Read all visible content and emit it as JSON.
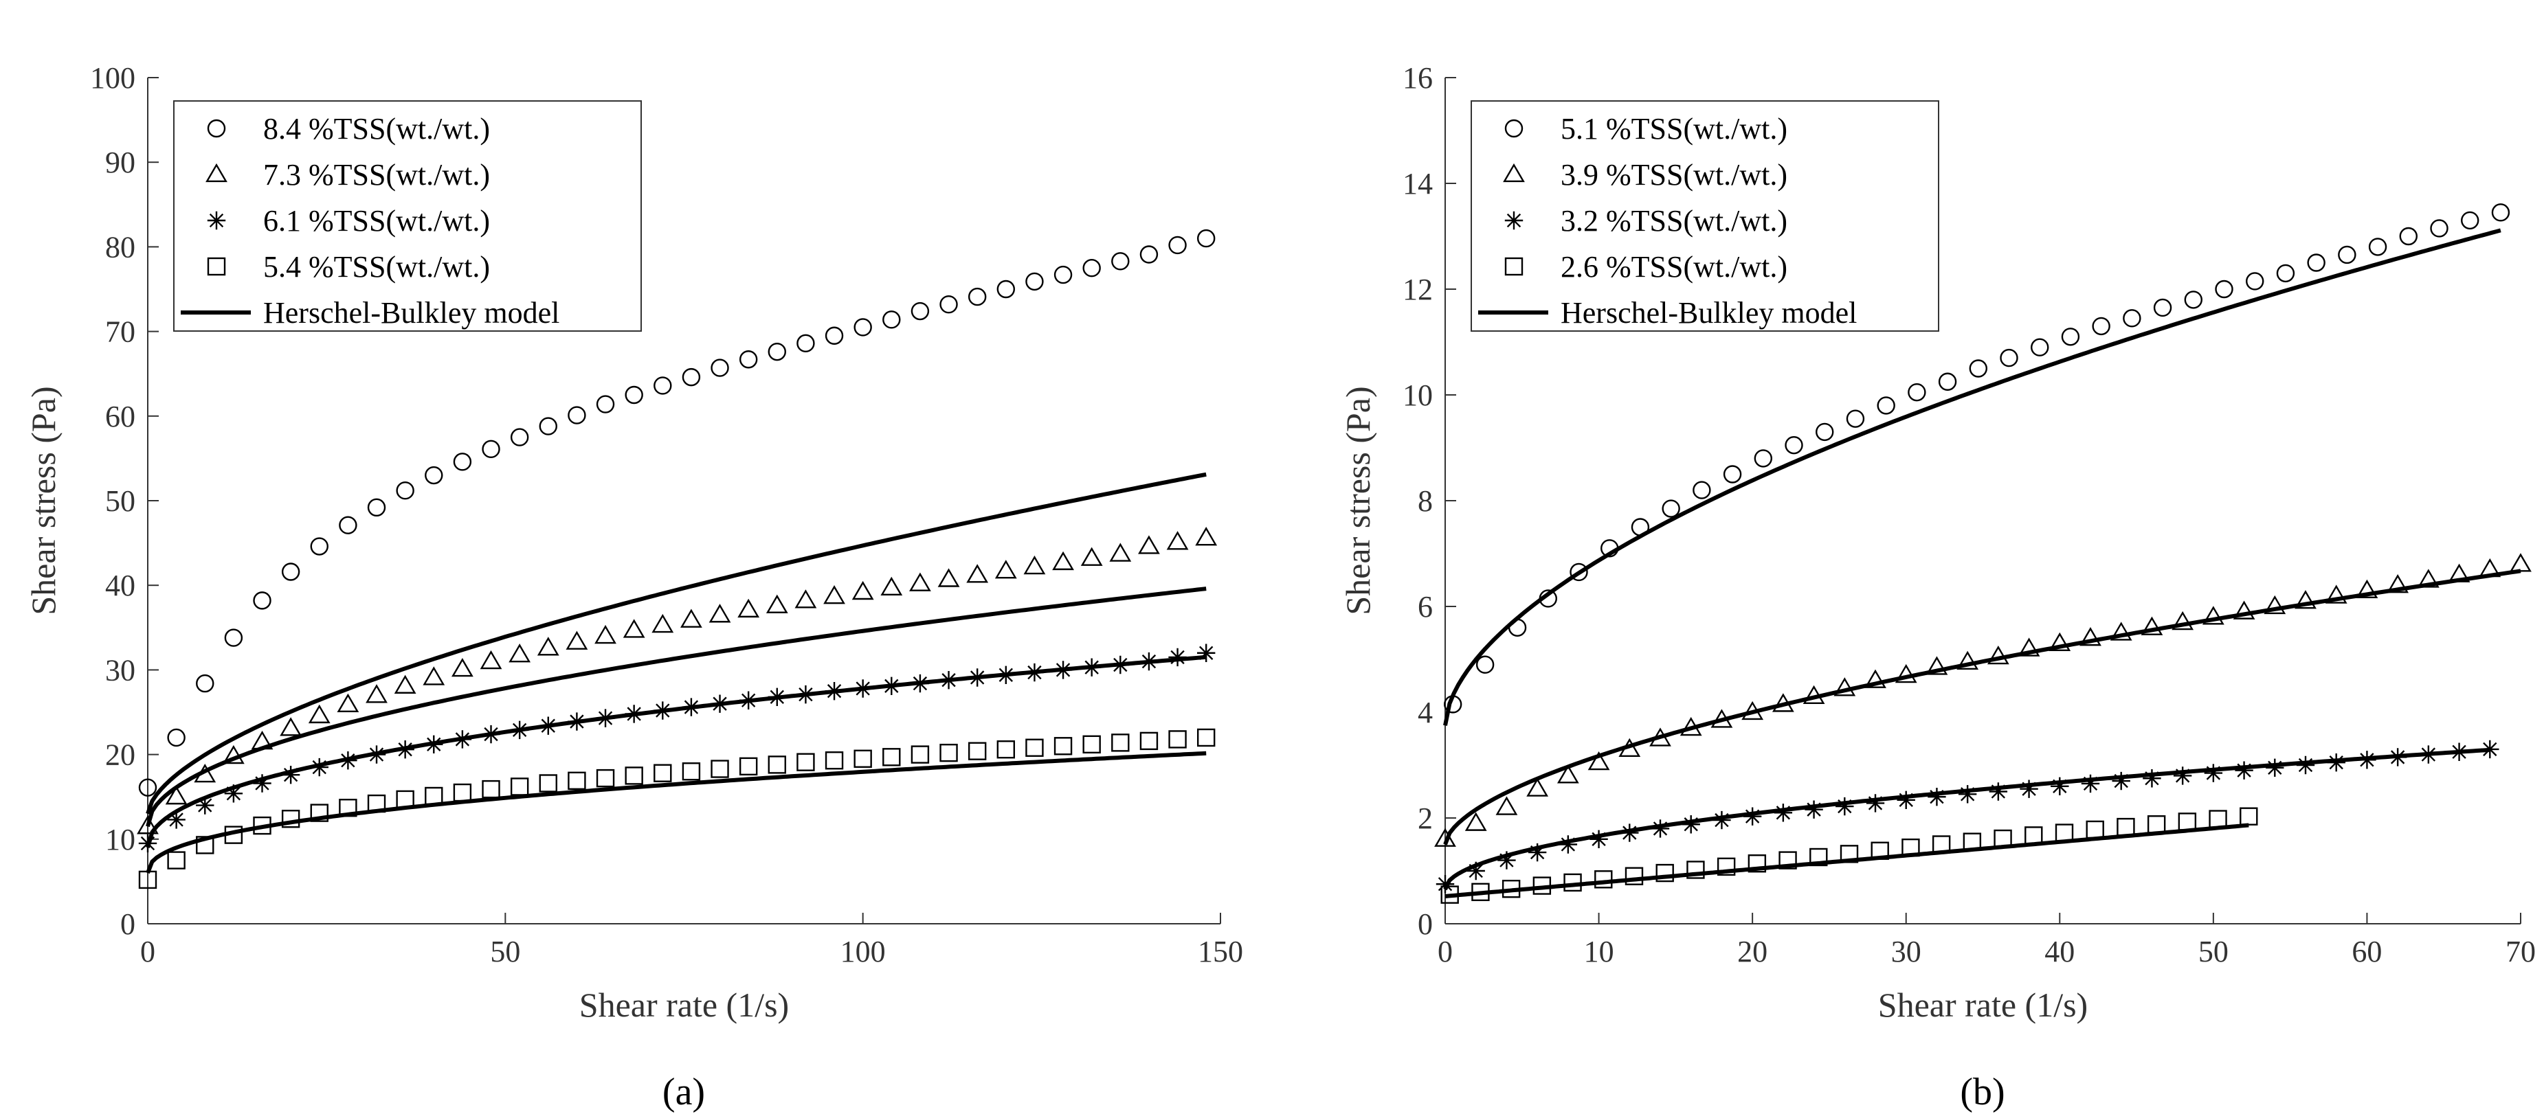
{
  "chart_data": [
    {
      "panel_label": "(a)",
      "type": "scatter",
      "xlabel": "Shear rate (1/s)",
      "ylabel": "Shear stress (Pa)",
      "xlim": [
        0,
        150
      ],
      "ylim": [
        0,
        100
      ],
      "xticks": [
        "0",
        "50",
        "100",
        "150"
      ],
      "yticks": [
        "0",
        "10",
        "20",
        "30",
        "40",
        "50",
        "60",
        "70",
        "80",
        "90",
        "100"
      ],
      "legend_position": "top-left",
      "model_label": "Herschel-Bulkley model",
      "series": [
        {
          "name": "8.4 %TSS(wt./wt.)",
          "marker": "circle",
          "x": [
            0,
            4,
            8,
            12,
            16,
            20,
            24,
            28,
            32,
            36,
            40,
            44,
            48,
            52,
            56,
            60,
            64,
            68,
            72,
            76,
            80,
            84,
            88,
            92,
            96,
            100,
            104,
            108,
            112,
            116,
            120,
            124,
            128,
            132,
            136,
            140,
            144,
            148
          ],
          "y": [
            16.1,
            22.0,
            28.4,
            33.8,
            38.2,
            41.6,
            44.6,
            47.1,
            49.2,
            51.2,
            53.0,
            54.6,
            56.1,
            57.5,
            58.8,
            60.1,
            61.4,
            62.5,
            63.6,
            64.6,
            65.7,
            66.7,
            67.6,
            68.6,
            69.5,
            70.5,
            71.4,
            72.4,
            73.2,
            74.1,
            75.0,
            75.9,
            76.7,
            77.5,
            78.3,
            79.1,
            80.2,
            81.0
          ],
          "model": {
            "tau0": 13.0,
            "k": 2.0,
            "n": 0.6
          }
        },
        {
          "name": "7.3 %TSS(wt./wt.)",
          "marker": "triangle",
          "x": [
            0,
            4,
            8,
            12,
            16,
            20,
            24,
            28,
            32,
            36,
            40,
            44,
            48,
            52,
            56,
            60,
            64,
            68,
            72,
            76,
            80,
            84,
            88,
            92,
            96,
            100,
            104,
            108,
            112,
            116,
            120,
            124,
            128,
            132,
            136,
            140,
            144,
            148
          ],
          "y": [
            11.5,
            15.0,
            17.6,
            19.8,
            21.5,
            23.1,
            24.6,
            25.9,
            27.0,
            28.1,
            29.1,
            30.1,
            31.0,
            31.8,
            32.6,
            33.3,
            34.0,
            34.7,
            35.3,
            35.9,
            36.5,
            37.1,
            37.6,
            38.2,
            38.7,
            39.2,
            39.7,
            40.2,
            40.7,
            41.2,
            41.7,
            42.2,
            42.7,
            43.2,
            43.7,
            44.6,
            45.1,
            45.6
          ],
          "model": {
            "tau0": 11.5,
            "k": 2.31,
            "n": 0.5
          }
        },
        {
          "name": "6.1 %TSS(wt./wt.)",
          "marker": "asterisk",
          "x": [
            0,
            4,
            8,
            12,
            16,
            20,
            24,
            28,
            32,
            36,
            40,
            44,
            48,
            52,
            56,
            60,
            64,
            68,
            72,
            76,
            80,
            84,
            88,
            92,
            96,
            100,
            104,
            108,
            112,
            116,
            120,
            124,
            128,
            132,
            136,
            140,
            144,
            148
          ],
          "y": [
            9.5,
            12.3,
            14.0,
            15.4,
            16.6,
            17.6,
            18.5,
            19.3,
            20.0,
            20.6,
            21.2,
            21.8,
            22.4,
            22.9,
            23.4,
            23.9,
            24.3,
            24.8,
            25.2,
            25.6,
            26.0,
            26.4,
            26.8,
            27.1,
            27.5,
            27.8,
            28.1,
            28.4,
            28.8,
            29.1,
            29.4,
            29.7,
            30.0,
            30.3,
            30.6,
            31.0,
            31.5,
            32.0
          ],
          "model": {
            "tau0": 9.0,
            "k": 2.26,
            "n": 0.46
          }
        },
        {
          "name": "5.4 %TSS(wt./wt.)",
          "marker": "square",
          "x": [
            0,
            4,
            8,
            12,
            16,
            20,
            24,
            28,
            32,
            36,
            40,
            44,
            48,
            52,
            56,
            60,
            64,
            68,
            72,
            76,
            80,
            84,
            88,
            92,
            96,
            100,
            104,
            108,
            112,
            116,
            120,
            124,
            128,
            132,
            136,
            140,
            144,
            148
          ],
          "y": [
            5.2,
            7.5,
            9.3,
            10.5,
            11.6,
            12.4,
            13.1,
            13.7,
            14.2,
            14.7,
            15.1,
            15.5,
            15.9,
            16.2,
            16.6,
            16.9,
            17.2,
            17.5,
            17.8,
            18.0,
            18.3,
            18.6,
            18.8,
            19.1,
            19.3,
            19.5,
            19.7,
            20.0,
            20.2,
            20.4,
            20.6,
            20.8,
            21.0,
            21.2,
            21.4,
            21.6,
            21.8,
            22.0
          ],
          "model": {
            "tau0": 6.0,
            "k": 1.65,
            "n": 0.43
          }
        }
      ]
    },
    {
      "panel_label": "(b)",
      "type": "scatter",
      "xlabel": "Shear rate (1/s)",
      "ylabel": "Shear stress (Pa)",
      "xlim": [
        0,
        70
      ],
      "ylim": [
        0,
        16
      ],
      "xticks": [
        "0",
        "10",
        "20",
        "30",
        "40",
        "50",
        "60",
        "70"
      ],
      "yticks": [
        "0",
        "2",
        "4",
        "6",
        "8",
        "10",
        "12",
        "14",
        "16"
      ],
      "legend_position": "top-left",
      "model_label": "Herschel-Bulkley model",
      "series": [
        {
          "name": "5.1 %TSS(wt./wt.)",
          "marker": "circle",
          "x": [
            0.5,
            2.6,
            4.7,
            6.7,
            8.7,
            10.7,
            12.7,
            14.7,
            16.7,
            18.7,
            20.7,
            22.7,
            24.7,
            26.7,
            28.7,
            30.7,
            32.7,
            34.7,
            36.7,
            38.7,
            40.7,
            42.7,
            44.7,
            46.7,
            48.7,
            50.7,
            52.7,
            54.7,
            56.7,
            58.7,
            60.7,
            62.7,
            64.7,
            66.7,
            68.7
          ],
          "y": [
            4.15,
            4.9,
            5.6,
            6.15,
            6.65,
            7.1,
            7.5,
            7.85,
            8.2,
            8.5,
            8.8,
            9.05,
            9.3,
            9.55,
            9.8,
            10.05,
            10.25,
            10.5,
            10.7,
            10.9,
            11.1,
            11.3,
            11.45,
            11.65,
            11.8,
            12.0,
            12.15,
            12.3,
            12.5,
            12.65,
            12.8,
            13.0,
            13.15,
            13.3,
            13.45
          ],
          "model": {
            "tau0": 3.75,
            "k": 0.84,
            "n": 0.57
          }
        },
        {
          "name": "3.9 %TSS(wt./wt.)",
          "marker": "triangle",
          "x": [
            0,
            2,
            4,
            6,
            8,
            10,
            12,
            14,
            16,
            18,
            20,
            22,
            24,
            26,
            28,
            30,
            32,
            34,
            36,
            38,
            40,
            42,
            44,
            46,
            48,
            50,
            52,
            54,
            56,
            58,
            60,
            62,
            64,
            66,
            68,
            70
          ],
          "y": [
            1.6,
            1.9,
            2.2,
            2.55,
            2.8,
            3.05,
            3.3,
            3.5,
            3.7,
            3.85,
            4.0,
            4.15,
            4.3,
            4.45,
            4.6,
            4.7,
            4.85,
            4.95,
            5.05,
            5.2,
            5.3,
            5.4,
            5.5,
            5.6,
            5.7,
            5.8,
            5.9,
            6.0,
            6.1,
            6.2,
            6.3,
            6.4,
            6.5,
            6.6,
            6.7,
            6.8
          ],
          "model": {
            "tau0": 1.5,
            "k": 0.44,
            "n": 0.58
          }
        },
        {
          "name": "3.2 %TSS(wt./wt.)",
          "marker": "asterisk",
          "x": [
            0,
            2,
            4,
            6,
            8,
            10,
            12,
            14,
            16,
            18,
            20,
            22,
            24,
            26,
            28,
            30,
            32,
            34,
            36,
            38,
            40,
            42,
            44,
            46,
            48,
            50,
            52,
            54,
            56,
            58,
            60,
            62,
            64,
            66,
            68
          ],
          "y": [
            0.75,
            1.0,
            1.2,
            1.35,
            1.5,
            1.6,
            1.72,
            1.8,
            1.88,
            1.96,
            2.03,
            2.1,
            2.16,
            2.22,
            2.28,
            2.34,
            2.4,
            2.45,
            2.5,
            2.55,
            2.6,
            2.65,
            2.7,
            2.75,
            2.8,
            2.85,
            2.9,
            2.95,
            3.0,
            3.05,
            3.1,
            3.15,
            3.2,
            3.25,
            3.3
          ],
          "model": {
            "tau0": 0.65,
            "k": 0.32,
            "n": 0.5
          }
        },
        {
          "name": "2.6 %TSS(wt./wt.)",
          "marker": "square",
          "x": [
            0.3,
            2.3,
            4.3,
            6.3,
            8.3,
            10.3,
            12.3,
            14.3,
            16.3,
            18.3,
            20.3,
            22.3,
            24.3,
            26.3,
            28.3,
            30.3,
            32.3,
            34.3,
            36.3,
            38.3,
            40.3,
            42.3,
            44.3,
            46.3,
            48.3,
            50.3,
            52.3
          ],
          "y": [
            0.55,
            0.6,
            0.66,
            0.72,
            0.78,
            0.84,
            0.9,
            0.96,
            1.02,
            1.08,
            1.14,
            1.2,
            1.26,
            1.32,
            1.38,
            1.44,
            1.5,
            1.55,
            1.61,
            1.67,
            1.72,
            1.78,
            1.83,
            1.88,
            1.93,
            1.98,
            2.03
          ],
          "model": {
            "tau0": 0.52,
            "k": 0.0257,
            "n": 1.0
          }
        }
      ]
    }
  ]
}
